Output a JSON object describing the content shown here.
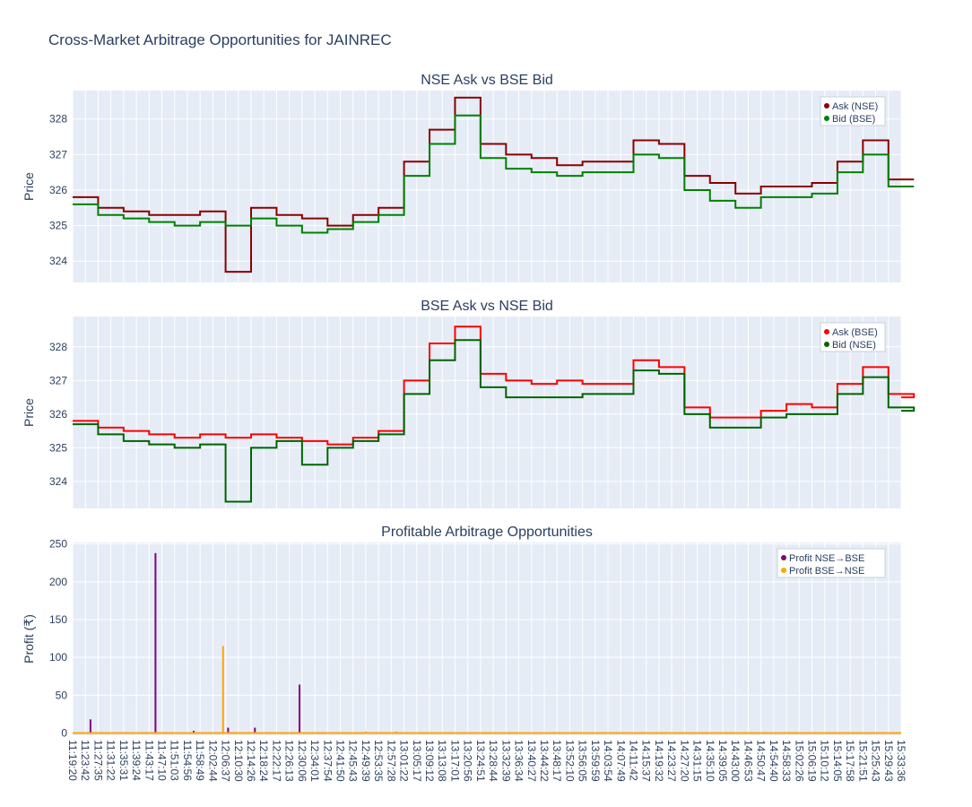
{
  "title": "Cross-Market Arbitrage Opportunities for JAINREC",
  "chart_data": [
    {
      "type": "line",
      "title": "NSE Ask vs BSE Bid",
      "ylabel": "Price",
      "ylim": [
        323.4,
        328.8
      ],
      "yticks": [
        324,
        325,
        326,
        327,
        328
      ],
      "grid": true,
      "legend_position": "top-right",
      "x_index": [
        0,
        2,
        4,
        6,
        8,
        10,
        12,
        14,
        16,
        18,
        20,
        22,
        24,
        26,
        28,
        30,
        32,
        34,
        36,
        38,
        40,
        42,
        44,
        46,
        48,
        50,
        52,
        54,
        56,
        58,
        60,
        62,
        64,
        66
      ],
      "series": [
        {
          "name": "Ask (NSE)",
          "color": "#8b0000",
          "values": [
            325.8,
            325.5,
            325.4,
            325.3,
            325.3,
            325.4,
            323.7,
            325.5,
            325.3,
            325.2,
            325.0,
            325.3,
            325.5,
            326.8,
            327.7,
            328.6,
            327.3,
            327.0,
            326.9,
            326.7,
            326.8,
            326.8,
            327.4,
            327.3,
            326.4,
            326.2,
            325.9,
            326.1,
            326.1,
            326.2,
            326.8,
            327.4,
            326.3,
            326.3
          ]
        },
        {
          "name": "Bid (BSE)",
          "color": "#008000",
          "values": [
            325.6,
            325.3,
            325.2,
            325.1,
            325.0,
            325.1,
            325.0,
            325.2,
            325.0,
            324.8,
            324.9,
            325.1,
            325.3,
            326.4,
            327.3,
            328.1,
            326.9,
            326.6,
            326.5,
            326.4,
            326.5,
            326.5,
            327.0,
            326.9,
            326.0,
            325.7,
            325.5,
            325.8,
            325.8,
            325.9,
            326.5,
            327.0,
            326.1,
            326.1
          ]
        }
      ]
    },
    {
      "type": "line",
      "title": "BSE Ask vs NSE Bid",
      "ylabel": "Price",
      "ylim": [
        323.2,
        328.9
      ],
      "yticks": [
        324,
        325,
        326,
        327,
        328
      ],
      "grid": true,
      "legend_position": "top-right",
      "x_index": [
        0,
        2,
        4,
        6,
        8,
        10,
        12,
        14,
        16,
        18,
        20,
        22,
        24,
        26,
        28,
        30,
        32,
        34,
        36,
        38,
        40,
        42,
        44,
        46,
        48,
        50,
        52,
        54,
        56,
        58,
        60,
        62,
        64,
        66
      ],
      "series": [
        {
          "name": "Ask (BSE)",
          "color": "#ff0000",
          "values": [
            325.8,
            325.6,
            325.5,
            325.4,
            325.3,
            325.4,
            325.3,
            325.4,
            325.3,
            325.2,
            325.1,
            325.3,
            325.5,
            327.0,
            328.1,
            328.6,
            327.2,
            327.0,
            326.9,
            327.0,
            326.9,
            326.9,
            327.6,
            327.4,
            326.2,
            325.9,
            325.9,
            326.1,
            326.3,
            326.2,
            326.9,
            327.4,
            326.6,
            326.5
          ]
        },
        {
          "name": "Bid (NSE)",
          "color": "#006400",
          "values": [
            325.7,
            325.4,
            325.2,
            325.1,
            325.0,
            325.1,
            323.4,
            325.0,
            325.2,
            324.5,
            325.0,
            325.2,
            325.4,
            326.6,
            327.6,
            328.2,
            326.8,
            326.5,
            326.5,
            326.5,
            326.6,
            326.6,
            327.3,
            327.2,
            326.0,
            325.6,
            325.6,
            325.9,
            326.0,
            326.0,
            326.6,
            327.1,
            326.2,
            326.1
          ]
        }
      ]
    },
    {
      "type": "bar",
      "title": "Profitable Arbitrage Opportunities",
      "ylabel": "Profit (₹)",
      "ylim": [
        -3,
        252
      ],
      "yticks": [
        0,
        50,
        100,
        150,
        200,
        250
      ],
      "grid": true,
      "legend_position": "top-right",
      "series": [
        {
          "name": "Profit NSE→BSE",
          "color": "#800080",
          "points": [
            {
              "x": 1.4,
              "y": 18
            },
            {
              "x": 6.5,
              "y": 238
            },
            {
              "x": 9.5,
              "y": 3
            },
            {
              "x": 12.2,
              "y": 7
            },
            {
              "x": 14.3,
              "y": 7
            },
            {
              "x": 17.8,
              "y": 64
            }
          ]
        },
        {
          "name": "Profit BSE→NSE",
          "color": "#ffa500",
          "points": [
            {
              "x": 11.8,
              "y": 115
            },
            {
              "x": 23.0,
              "y": 2
            },
            {
              "x": 25.4,
              "y": 2
            }
          ]
        }
      ],
      "categories": [
        "11:19:20",
        "11:23:42",
        "11:27:35",
        "11:31:22",
        "11:35:31",
        "11:39:24",
        "11:43:17",
        "11:47:10",
        "11:51:03",
        "11:54:56",
        "11:58:49",
        "12:02:44",
        "12:06:37",
        "12:10:30",
        "12:14:26",
        "12:18:24",
        "12:22:17",
        "12:26:13",
        "12:30:06",
        "12:34:01",
        "12:37:54",
        "12:41:50",
        "12:45:43",
        "12:49:39",
        "12:53:35",
        "12:57:28",
        "13:01:22",
        "13:05:17",
        "13:09:12",
        "13:13:08",
        "13:17:01",
        "13:20:56",
        "13:24:51",
        "13:28:44",
        "13:32:39",
        "13:36:34",
        "13:40:27",
        "13:44:22",
        "13:48:17",
        "13:52:10",
        "13:56:05",
        "13:59:59",
        "14:03:54",
        "14:07:49",
        "14:11:42",
        "14:15:37",
        "14:19:32",
        "14:23:27",
        "14:27:20",
        "14:31:15",
        "14:35:10",
        "14:39:05",
        "14:43:00",
        "14:46:53",
        "14:50:47",
        "14:54:40",
        "14:58:33",
        "15:02:26",
        "15:06:19",
        "15:10:12",
        "15:14:05",
        "15:17:58",
        "15:21:51",
        "15:25:43",
        "15:29:43",
        "15:33:36"
      ]
    }
  ]
}
